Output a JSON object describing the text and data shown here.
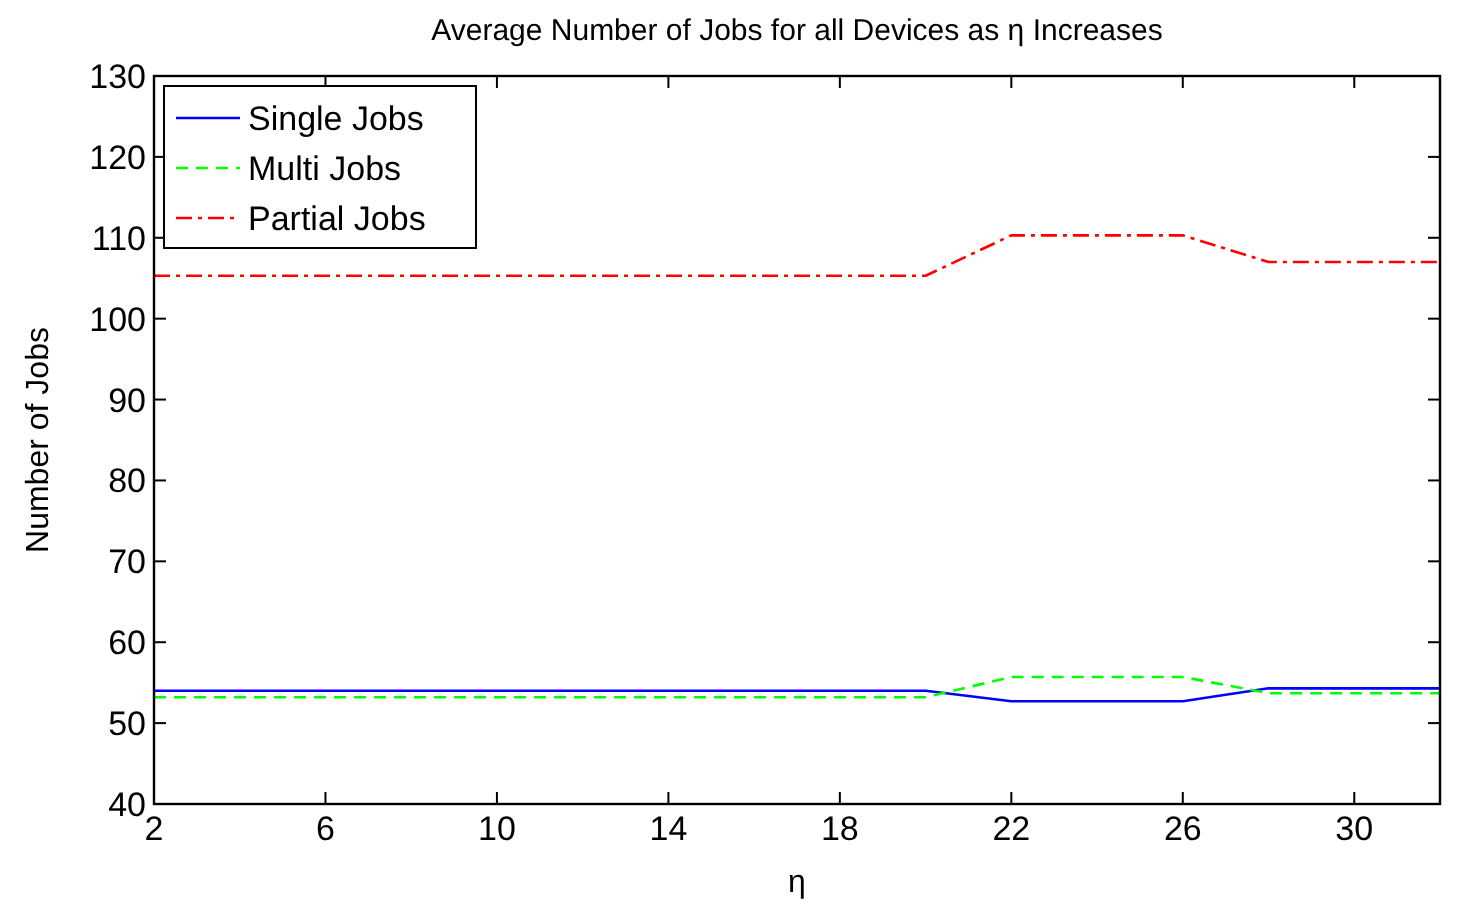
{
  "chart_data": {
    "type": "line",
    "title": "Average Number of Jobs for all Devices as η Increases",
    "xlabel": "η",
    "ylabel": "Number of Jobs",
    "x": [
      2,
      20,
      22,
      26,
      28,
      32
    ],
    "series": [
      {
        "name": "Single Jobs",
        "color": "#0000ff",
        "line_style": "solid",
        "values": [
          54,
          54,
          52.7,
          52.7,
          54.3,
          54.3
        ]
      },
      {
        "name": "Multi Jobs",
        "color": "#00ff00",
        "line_style": "dashed",
        "values": [
          53.2,
          53.2,
          55.7,
          55.7,
          53.7,
          53.7
        ]
      },
      {
        "name": "Partial Jobs",
        "color": "#ff0000",
        "line_style": "dashdot",
        "values": [
          105.3,
          105.3,
          110.3,
          110.3,
          107,
          107
        ]
      }
    ],
    "xlim": [
      2,
      32
    ],
    "xticks": [
      2,
      6,
      10,
      14,
      18,
      22,
      26,
      30
    ],
    "ylim": [
      40,
      130
    ],
    "yticks": [
      40,
      50,
      60,
      70,
      80,
      90,
      100,
      110,
      120,
      130
    ],
    "legend": "top left",
    "grid": false,
    "marker": "none"
  }
}
